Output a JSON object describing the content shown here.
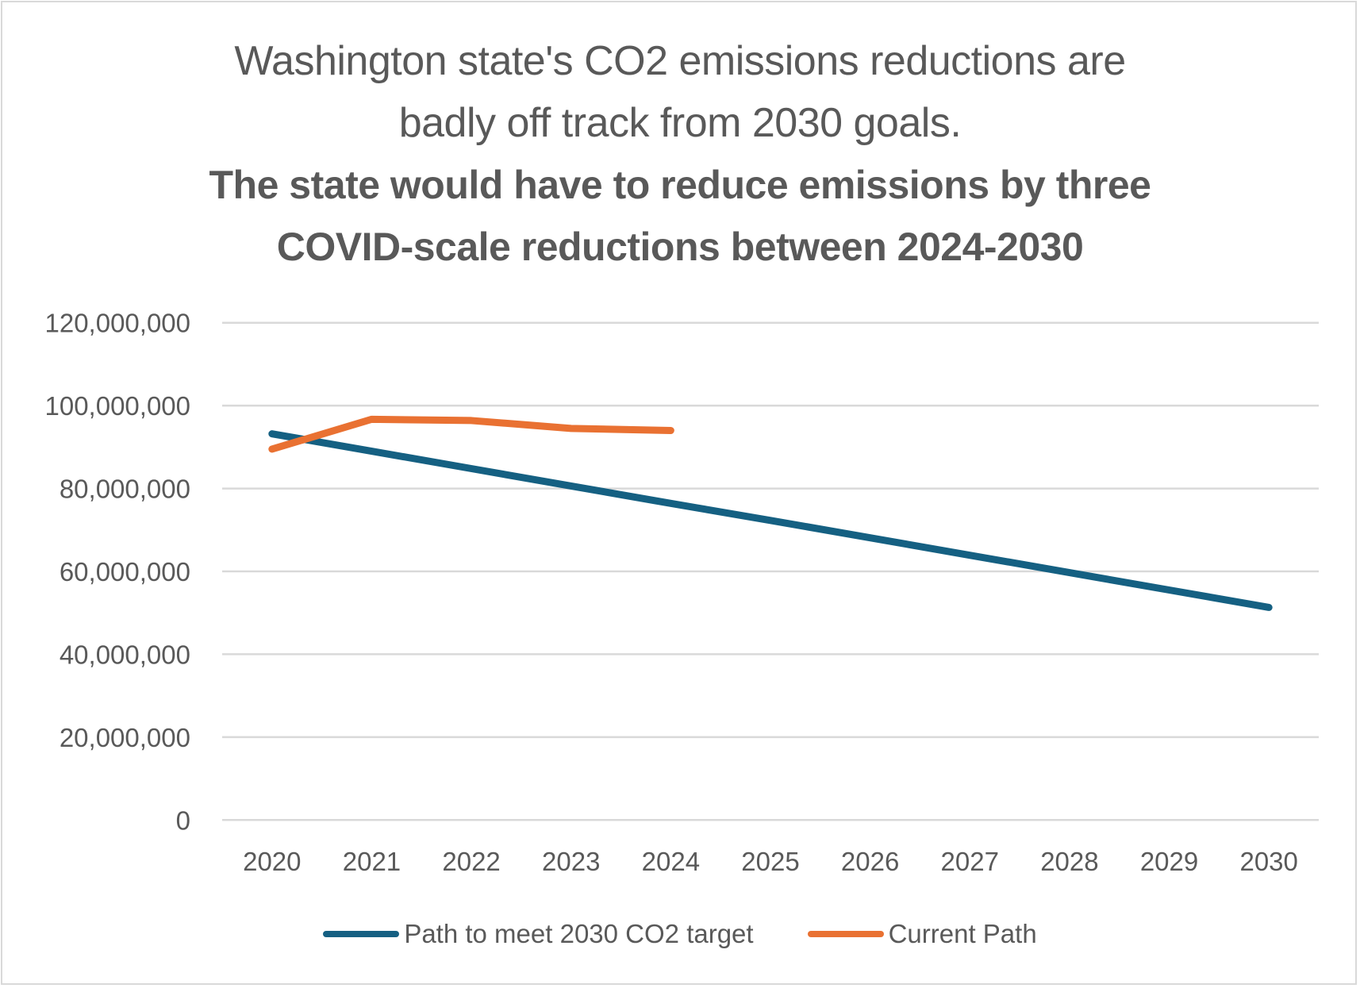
{
  "chart_data": {
    "type": "line",
    "title": "Washington state's CO2 emissions reductions are badly off track from 2030 goals.",
    "title_lines": [
      "Washington state's CO2 emissions reductions are",
      "badly off track from 2030 goals."
    ],
    "subtitle": "The state would have to reduce emissions by three COVID-scale reductions between 2024-2030",
    "subtitle_lines": [
      "The state would have to reduce emissions by three",
      "COVID-scale reductions between 2024-2030"
    ],
    "xlabel": "",
    "ylabel": "",
    "categories": [
      "2020",
      "2021",
      "2022",
      "2023",
      "2024",
      "2025",
      "2026",
      "2027",
      "2028",
      "2029",
      "2030"
    ],
    "ylim": [
      0,
      120000000
    ],
    "yticks": [
      0,
      20000000,
      40000000,
      60000000,
      80000000,
      100000000,
      120000000
    ],
    "ytick_labels": [
      "0",
      "20,000,000",
      "40,000,000",
      "60,000,000",
      "80,000,000",
      "100,000,000",
      "120,000,000"
    ],
    "grid": true,
    "legend_position": "bottom",
    "series": [
      {
        "name": "Path to meet 2030 CO2 target",
        "color": "#156082",
        "values": [
          93200000,
          89000000,
          84800000,
          80600000,
          76400000,
          72300000,
          68100000,
          63900000,
          59700000,
          55500000,
          51300000
        ]
      },
      {
        "name": "Current Path",
        "color": "#E97132",
        "values": [
          89500000,
          96700000,
          96400000,
          94500000,
          94000000,
          null,
          null,
          null,
          null,
          null,
          null
        ]
      }
    ]
  }
}
